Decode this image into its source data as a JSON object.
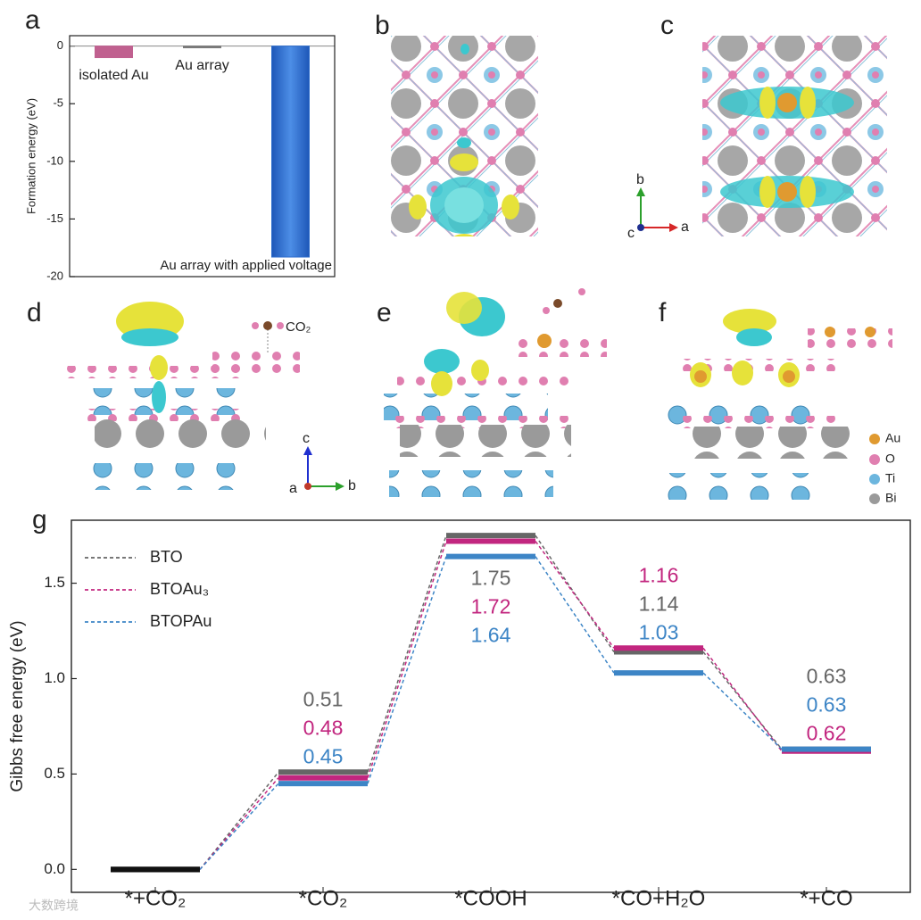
{
  "chart_data": [
    {
      "type": "bar",
      "panel": "a",
      "ylabel": "Formation energy (eV)",
      "categories": [
        "isolated Au",
        "Au array",
        "Au array with applied voltage"
      ],
      "values": [
        -1.0,
        -0.15,
        -18.3
      ],
      "colors": [
        "#c0608f",
        "#7a7a7a",
        "#2e6dcc"
      ],
      "ylim": [
        -20,
        0.9
      ],
      "yticks": [
        0,
        -5,
        -10,
        -15,
        -20
      ]
    },
    {
      "type": "energy_levels",
      "panel": "g",
      "ylabel": "Gibbs free energy (eV)",
      "categories": [
        "*+CO₂",
        "*CO₂",
        "*COOH",
        "*CO+H₂O",
        "*+CO"
      ],
      "series": [
        {
          "name": "BTO",
          "color": "#666666",
          "values": [
            0,
            0.51,
            1.75,
            1.14,
            0.63
          ]
        },
        {
          "name": "BTOAu₃",
          "color": "#c2267f",
          "values": [
            0,
            0.48,
            1.72,
            1.16,
            0.62
          ]
        },
        {
          "name": "BTOPAu",
          "color": "#3d85c6",
          "values": [
            0,
            0.45,
            1.64,
            1.03,
            0.63
          ]
        }
      ],
      "ylim": [
        -0.12,
        1.83
      ],
      "yticks": [
        {
          "value": 0,
          "label": "0.0"
        },
        0.5,
        {
          "value": 1,
          "label": "1.0"
        },
        1.5
      ]
    }
  ],
  "structures": {
    "panel_labels": [
      "b",
      "c",
      "d",
      "e",
      "f"
    ],
    "axes_bc": [
      "b",
      "a",
      "c"
    ],
    "axes_d": [
      "c",
      "b",
      "a"
    ],
    "adsorbate": "CO₂",
    "legend": [
      "Au",
      "O",
      "Ti",
      "Bi"
    ]
  },
  "watermark": "大数跨境"
}
